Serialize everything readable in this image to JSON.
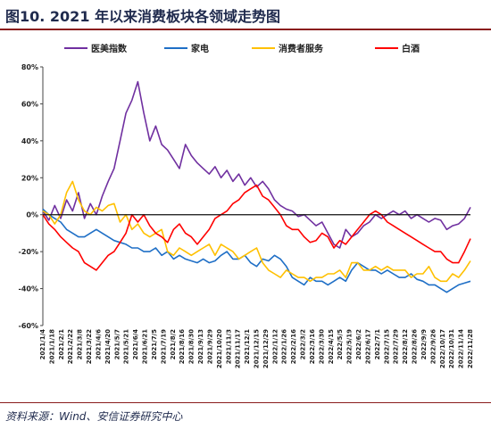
{
  "page": {
    "title": "图10. 2021 年以来消费板块各领域走势图",
    "source": "资料来源：Wind、安信证券研究中心"
  },
  "chart_data": {
    "type": "line",
    "title": "",
    "xlabel": "",
    "ylabel": "",
    "ylim": [
      -60,
      80
    ],
    "y_ticks": [
      "80%",
      "60%",
      "40%",
      "20%",
      "0%",
      "-20%",
      "-40%",
      "-60%"
    ],
    "y_tick_values": [
      80,
      60,
      40,
      20,
      0,
      -20,
      -40,
      -60
    ],
    "grid": false,
    "legend_position": "top",
    "x_tick_labels": [
      "2021/1/4",
      "2021/1/18",
      "2021/2/1",
      "2021/2/22",
      "2021/3/8",
      "2021/3/22",
      "2021/4/6",
      "2021/4/20",
      "2021/5/7",
      "2021/5/21",
      "2021/6/4",
      "2021/6/21",
      "2021/7/5",
      "2021/7/19",
      "2021/8/2",
      "2021/8/16",
      "2021/8/30",
      "2021/9/13",
      "2021/9/29",
      "2021/10/20",
      "2021/11/3",
      "2021/11/17",
      "2021/12/1",
      "2021/12/15",
      "2021/12/29",
      "2022/1/12",
      "2022/1/26",
      "2022/2/16",
      "2022/3/2",
      "2022/3/16",
      "2022/3/30",
      "2022/4/15",
      "2022/5/5",
      "2022/5/19",
      "2022/6/2",
      "2022/6/17",
      "2022/7/1",
      "2022/7/15",
      "2022/7/29",
      "2022/8/12",
      "2022/8/26",
      "2022/9/9",
      "2022/9/26",
      "2022/10/17",
      "2022/10/31",
      "2022/11/14",
      "2022/11/28"
    ],
    "series": [
      {
        "name": "医美指数",
        "color": "#7030a0",
        "values": [
          2,
          -3,
          5,
          -2,
          8,
          2,
          12,
          -2,
          6,
          0,
          10,
          18,
          25,
          40,
          55,
          62,
          72,
          55,
          40,
          48,
          38,
          35,
          30,
          25,
          38,
          32,
          28,
          25,
          22,
          26,
          20,
          24,
          18,
          22,
          16,
          20,
          15,
          18,
          14,
          8,
          5,
          3,
          2,
          -1,
          0,
          -3,
          -6,
          -4,
          -10,
          -16,
          -18,
          -8,
          -12,
          -10,
          -6,
          -4,
          0,
          -2,
          0,
          2,
          0,
          2,
          -2,
          0,
          -2,
          -4,
          -2,
          -3,
          -8,
          -6,
          -5,
          -2,
          4
        ]
      },
      {
        "name": "家电",
        "color": "#1f6fc6",
        "values": [
          3,
          0,
          -2,
          -4,
          -8,
          -10,
          -12,
          -12,
          -10,
          -8,
          -10,
          -12,
          -14,
          -15,
          -16,
          -18,
          -18,
          -20,
          -20,
          -18,
          -22,
          -20,
          -24,
          -22,
          -24,
          -25,
          -26,
          -24,
          -26,
          -25,
          -22,
          -20,
          -24,
          -24,
          -22,
          -26,
          -28,
          -24,
          -25,
          -22,
          -24,
          -28,
          -34,
          -36,
          -38,
          -34,
          -36,
          -36,
          -38,
          -36,
          -34,
          -36,
          -30,
          -26,
          -28,
          -30,
          -30,
          -32,
          -30,
          -32,
          -34,
          -34,
          -32,
          -35,
          -36,
          -38,
          -38,
          -40,
          -42,
          -40,
          -38,
          -37,
          -36
        ]
      },
      {
        "name": "消费者服务",
        "color": "#ffc000",
        "values": [
          2,
          0,
          -5,
          0,
          12,
          18,
          8,
          2,
          0,
          4,
          2,
          5,
          6,
          -4,
          0,
          -8,
          -5,
          -10,
          -12,
          -10,
          -8,
          -20,
          -22,
          -18,
          -20,
          -22,
          -20,
          -18,
          -16,
          -22,
          -16,
          -18,
          -20,
          -24,
          -22,
          -20,
          -18,
          -26,
          -30,
          -32,
          -34,
          -30,
          -32,
          -34,
          -34,
          -36,
          -34,
          -34,
          -32,
          -32,
          -30,
          -34,
          -26,
          -26,
          -30,
          -30,
          -28,
          -30,
          -28,
          -30,
          -30,
          -30,
          -34,
          -32,
          -32,
          -28,
          -34,
          -36,
          -36,
          -32,
          -34,
          -30,
          -25
        ]
      },
      {
        "name": "白酒",
        "color": "#ff0000",
        "values": [
          0,
          -5,
          -8,
          -12,
          -15,
          -18,
          -20,
          -26,
          -28,
          -30,
          -26,
          -22,
          -20,
          -15,
          -10,
          0,
          -4,
          0,
          -6,
          -10,
          -12,
          -15,
          -8,
          -5,
          -10,
          -12,
          -16,
          -12,
          -8,
          -2,
          0,
          2,
          6,
          8,
          12,
          14,
          16,
          10,
          8,
          4,
          0,
          -6,
          -8,
          -8,
          -12,
          -15,
          -14,
          -10,
          -12,
          -18,
          -14,
          -16,
          -12,
          -8,
          -4,
          0,
          2,
          0,
          -4,
          -6,
          -8,
          -10,
          -12,
          -14,
          -16,
          -18,
          -20,
          -20,
          -24,
          -26,
          -26,
          -20,
          -13
        ]
      }
    ]
  }
}
